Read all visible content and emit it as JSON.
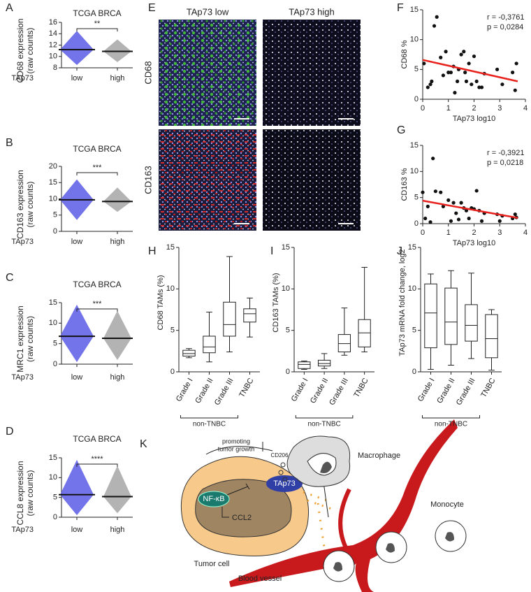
{
  "chart_data": [
    {
      "type": "strip",
      "panel": "A",
      "title": "TCGA BRCA",
      "ylabel": [
        "CD68 expression",
        "(raw counts)"
      ],
      "group_label": "TAp73",
      "categories": [
        "low",
        "high"
      ],
      "colors": [
        "#5b5ce6",
        "#a6a6a6"
      ],
      "values": [
        11.2,
        10.9
      ],
      "min": [
        8.5,
        9
      ],
      "max": [
        14.5,
        13
      ],
      "ylim": [
        8,
        16
      ],
      "yticks": [
        8,
        10,
        12,
        14,
        16
      ],
      "significance": "**"
    },
    {
      "type": "strip",
      "panel": "B",
      "title": "TCGA BRCA",
      "ylabel": [
        "CD163 expression",
        "(raw counts)"
      ],
      "group_label": "TAp73",
      "categories": [
        "low",
        "high"
      ],
      "colors": [
        "#5b5ce6",
        "#a6a6a6"
      ],
      "values": [
        9.7,
        9.2
      ],
      "min": [
        3.5,
        6
      ],
      "max": [
        16,
        13.5
      ],
      "ylim": [
        0,
        20
      ],
      "yticks": [
        0,
        5,
        10,
        15,
        20
      ],
      "significance": "***"
    },
    {
      "type": "strip",
      "panel": "C",
      "title": "TCGA BRCA",
      "ylabel": [
        "MRC1 expression",
        "(raw counts)"
      ],
      "group_label": "TAp73",
      "categories": [
        "low",
        "high"
      ],
      "colors": [
        "#5b5ce6",
        "#a6a6a6"
      ],
      "values": [
        6.8,
        6.3
      ],
      "min": [
        0.5,
        1
      ],
      "max": [
        14.5,
        13
      ],
      "ylim": [
        0,
        15
      ],
      "yticks": [
        0,
        5,
        10,
        15
      ],
      "significance": "***"
    },
    {
      "type": "strip",
      "panel": "D",
      "title": "TCGA BRCA",
      "ylabel": [
        "CCL8 expression",
        "(raw counts)"
      ],
      "group_label": "TAp73",
      "categories": [
        "low",
        "high"
      ],
      "colors": [
        "#5b5ce6",
        "#a6a6a6"
      ],
      "values": [
        5.7,
        5.2
      ],
      "min": [
        0.5,
        1
      ],
      "max": [
        14.5,
        13
      ],
      "ylim": [
        0,
        15
      ],
      "yticks": [
        0,
        5,
        10,
        15
      ],
      "significance": "****"
    },
    {
      "type": "image-grid",
      "panel": "E",
      "columns": [
        "TAp73 low",
        "TAp73 high"
      ],
      "rows": [
        "CD68",
        "CD163"
      ]
    },
    {
      "type": "scatter",
      "panel": "F",
      "xlabel": "TAp73 log10",
      "ylabel": "CD68 %",
      "annotations": [
        "r = -0,3761",
        "p = 0,0284"
      ],
      "x": [
        0.05,
        0.2,
        0.3,
        0.35,
        0.45,
        0.55,
        0.7,
        0.8,
        0.9,
        1.0,
        1.1,
        1.2,
        1.25,
        1.35,
        1.4,
        1.5,
        1.6,
        1.65,
        1.7,
        1.8,
        1.9,
        2.0,
        2.1,
        2.2,
        2.3,
        2.4,
        2.9,
        3.1,
        3.5,
        3.6,
        3.65
      ],
      "y": [
        6,
        2,
        2.5,
        3,
        12.3,
        13.8,
        7,
        4,
        8,
        4.5,
        4.5,
        5.5,
        1.1,
        3,
        5,
        7.5,
        8,
        4.5,
        3,
        6,
        2.5,
        7.2,
        3,
        2,
        2,
        4.3,
        5,
        2.5,
        4.5,
        1.5,
        6
      ],
      "fit": {
        "x": [
          0,
          3.7
        ],
        "y": [
          6.6,
          3.0
        ],
        "color": "#e8211c"
      },
      "xlim": [
        0,
        4
      ],
      "ylim": [
        0,
        15
      ],
      "xticks": [
        0,
        1,
        2,
        3,
        4
      ],
      "yticks": [
        0,
        5,
        10,
        15
      ]
    },
    {
      "type": "scatter",
      "panel": "G",
      "xlabel": "TAp73 log10",
      "ylabel": "CD163 %",
      "annotations": [
        "r = -0,3921",
        "p = 0,0218"
      ],
      "x": [
        0,
        0.1,
        0.2,
        0.3,
        0.4,
        0.5,
        0.7,
        0.8,
        1.0,
        1.1,
        1.2,
        1.3,
        1.4,
        1.5,
        1.6,
        1.7,
        1.8,
        1.9,
        2.0,
        2.1,
        2.2,
        2.3,
        2.4,
        2.9,
        3.0,
        3.1,
        3.5,
        3.6,
        3.65
      ],
      "y": [
        6,
        1,
        3.3,
        0.3,
        12.5,
        6.2,
        6,
        3.3,
        4.5,
        0.5,
        4,
        2,
        0.8,
        4,
        3,
        2.5,
        1,
        3,
        2.8,
        6.3,
        2.5,
        0.5,
        2,
        1.8,
        0.5,
        1.5,
        1,
        1.8,
        1.2
      ],
      "fit": {
        "x": [
          0,
          3.7
        ],
        "y": [
          4.4,
          1.1
        ],
        "color": "#e8211c"
      },
      "xlim": [
        0,
        4
      ],
      "ylim": [
        0,
        15
      ],
      "xticks": [
        0,
        1,
        2,
        3,
        4
      ],
      "yticks": [
        0,
        5,
        10,
        15
      ]
    },
    {
      "type": "box",
      "panel": "H",
      "ylabel": "CD68 TAMs (%)",
      "categories": [
        "Grade I",
        "Grade II",
        "Grade III",
        "TNBC"
      ],
      "bracket_label": "non-TNBC",
      "min": [
        1.7,
        1.2,
        2.4,
        4.2
      ],
      "q1": [
        1.9,
        2.3,
        4.3,
        6
      ],
      "median": [
        2.2,
        3,
        5.7,
        7
      ],
      "q3": [
        2.6,
        4.3,
        8.4,
        7.6
      ],
      "max": [
        2.8,
        7.2,
        13.9,
        8.9
      ],
      "ylim": [
        0,
        15
      ],
      "yticks": [
        0,
        5,
        10,
        15
      ]
    },
    {
      "type": "box",
      "panel": "I",
      "ylabel": "CD163 TAMs (%)",
      "categories": [
        "Grade I",
        "Grade II",
        "Grade III",
        "TNBC"
      ],
      "bracket_label": "non-TNBC",
      "min": [
        0.3,
        0.4,
        2.0,
        2.4
      ],
      "q1": [
        0.4,
        0.7,
        2.4,
        3.0
      ],
      "median": [
        0.9,
        1.0,
        3.4,
        4.7
      ],
      "q3": [
        1.2,
        1.4,
        4.5,
        6.3
      ],
      "max": [
        1.3,
        2.2,
        7.7,
        12.6
      ],
      "ylim": [
        0,
        15
      ],
      "yticks": [
        0,
        5,
        10,
        15
      ]
    },
    {
      "type": "box",
      "panel": "J",
      "ylabel": "TAp73 mRNA fold change, log2",
      "categories": [
        "Grade I",
        "Grade II",
        "Grade III",
        "TNBC"
      ],
      "bracket_label": "non-TNBC",
      "min": [
        0.3,
        0.8,
        1.6,
        0.2
      ],
      "q1": [
        2.9,
        3.3,
        3.7,
        1.7
      ],
      "median": [
        7.1,
        6,
        5.6,
        4
      ],
      "q3": [
        10.6,
        10.1,
        8.1,
        6.9
      ],
      "max": [
        11.8,
        12.2,
        11.9,
        7.5
      ],
      "ylim": [
        0,
        15
      ],
      "yticks": [
        0,
        5,
        10,
        15
      ]
    }
  ],
  "diagram": {
    "panel": "K",
    "promoting": [
      "promoting",
      "tumor growth"
    ],
    "cd206": "CD206",
    "macrophage": "Macrophage",
    "monocyte": "Monocyte",
    "tap73": "TAp73",
    "nfkb": "NF-κB",
    "ccl2": "CCL2",
    "tumor_cell": "Tumor cell",
    "blood_vessel": "Blood vessel"
  }
}
